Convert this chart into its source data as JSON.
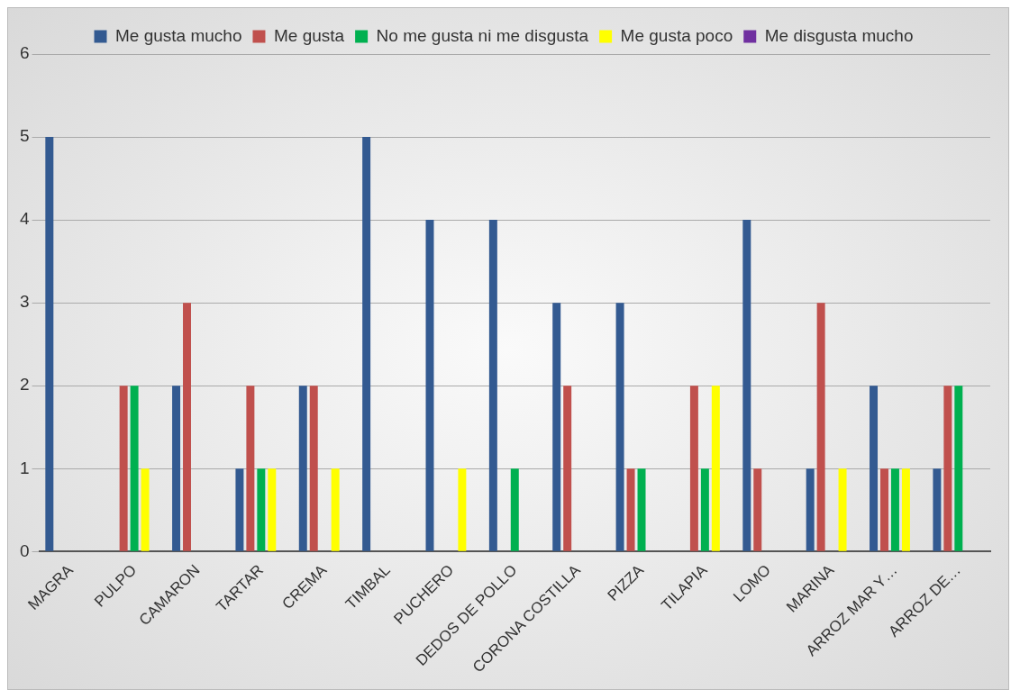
{
  "chart_data": {
    "type": "bar",
    "categories": [
      "MAGRA",
      "PULPO",
      "CAMARON",
      "TARTAR",
      "CREMA",
      "TIMBAL",
      "PUCHERO",
      "DEDOS DE POLLO",
      "CORONA COSTILLA",
      "PIZZA",
      "TILAPIA",
      "LOMO",
      "MARINA",
      "ARROZ MAR Y…",
      "ARROZ DE…"
    ],
    "series": [
      {
        "name": "Me gusta mucho",
        "color": "#335a91",
        "values": [
          5,
          0,
          2,
          1,
          2,
          5,
          4,
          4,
          3,
          3,
          0,
          4,
          1,
          2,
          1
        ]
      },
      {
        "name": "Me gusta",
        "color": "#c0504d",
        "values": [
          0,
          2,
          3,
          2,
          2,
          0,
          0,
          0,
          2,
          1,
          2,
          1,
          3,
          1,
          2
        ]
      },
      {
        "name": "No me gusta ni me disgusta",
        "color": "#00b050",
        "values": [
          0,
          2,
          0,
          1,
          0,
          0,
          0,
          1,
          0,
          1,
          1,
          0,
          0,
          1,
          2
        ]
      },
      {
        "name": "Me gusta poco",
        "color": "#ffff00",
        "values": [
          0,
          1,
          0,
          1,
          1,
          0,
          1,
          0,
          0,
          0,
          2,
          0,
          1,
          1,
          0
        ]
      },
      {
        "name": "Me disgusta mucho",
        "color": "#7030a0",
        "values": [
          0,
          0,
          0,
          0,
          0,
          0,
          0,
          0,
          0,
          0,
          0,
          0,
          0,
          0,
          0
        ]
      }
    ],
    "ylim": [
      0,
      6
    ],
    "yticks": [
      0,
      1,
      2,
      3,
      4,
      5,
      6
    ],
    "grid": "y",
    "legend": "top"
  }
}
